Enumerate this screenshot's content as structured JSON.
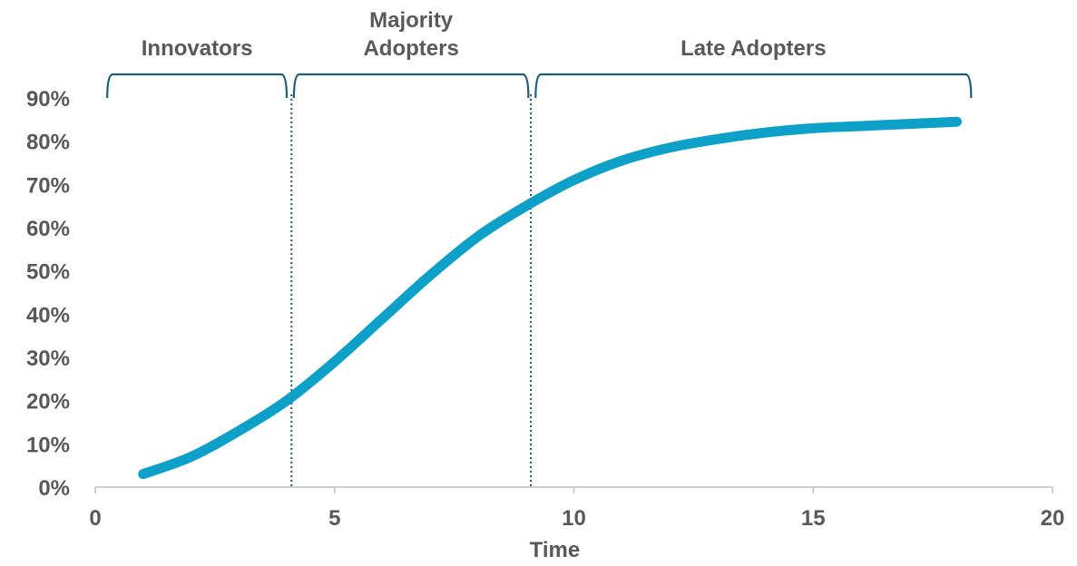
{
  "colors": {
    "series": "#0da0c8",
    "bracket": "#1d5f78",
    "divider": "#1d5f78",
    "axis": "#bfbfbf",
    "text": "#595959"
  },
  "chart_data": {
    "type": "line",
    "title": "",
    "xlabel": "Time",
    "ylabel": "",
    "xlim": [
      0,
      20
    ],
    "ylim": [
      0,
      0.9
    ],
    "x_ticks": [
      0,
      5,
      10,
      15,
      20
    ],
    "x_tick_labels": [
      "0",
      "5",
      "10",
      "15",
      "20"
    ],
    "y_ticks": [
      0,
      0.1,
      0.2,
      0.3,
      0.4,
      0.5,
      0.6,
      0.7,
      0.8,
      0.9
    ],
    "y_tick_labels": [
      "0%",
      "10%",
      "20%",
      "30%",
      "40%",
      "50%",
      "60%",
      "70%",
      "80%",
      "90%"
    ],
    "grid": false,
    "legend": "none",
    "series": [
      {
        "x": [
          1,
          2,
          3,
          4,
          5,
          6,
          7,
          8,
          9,
          10,
          11,
          12,
          13,
          14,
          15,
          16,
          17,
          18
        ],
        "y": [
          0.03,
          0.07,
          0.13,
          0.2,
          0.29,
          0.39,
          0.49,
          0.58,
          0.65,
          0.71,
          0.755,
          0.785,
          0.805,
          0.82,
          0.83,
          0.835,
          0.84,
          0.845
        ]
      }
    ],
    "dividers": [
      4.1,
      9.1
    ],
    "phases": [
      {
        "lines": [
          "Innovators"
        ],
        "x_start": 0.25,
        "x_end": 4.0
      },
      {
        "lines": [
          "Majority",
          "Adopters"
        ],
        "x_start": 4.15,
        "x_end": 9.05
      },
      {
        "lines": [
          "Late Adopters"
        ],
        "x_start": 9.2,
        "x_end": 18.3
      }
    ]
  }
}
